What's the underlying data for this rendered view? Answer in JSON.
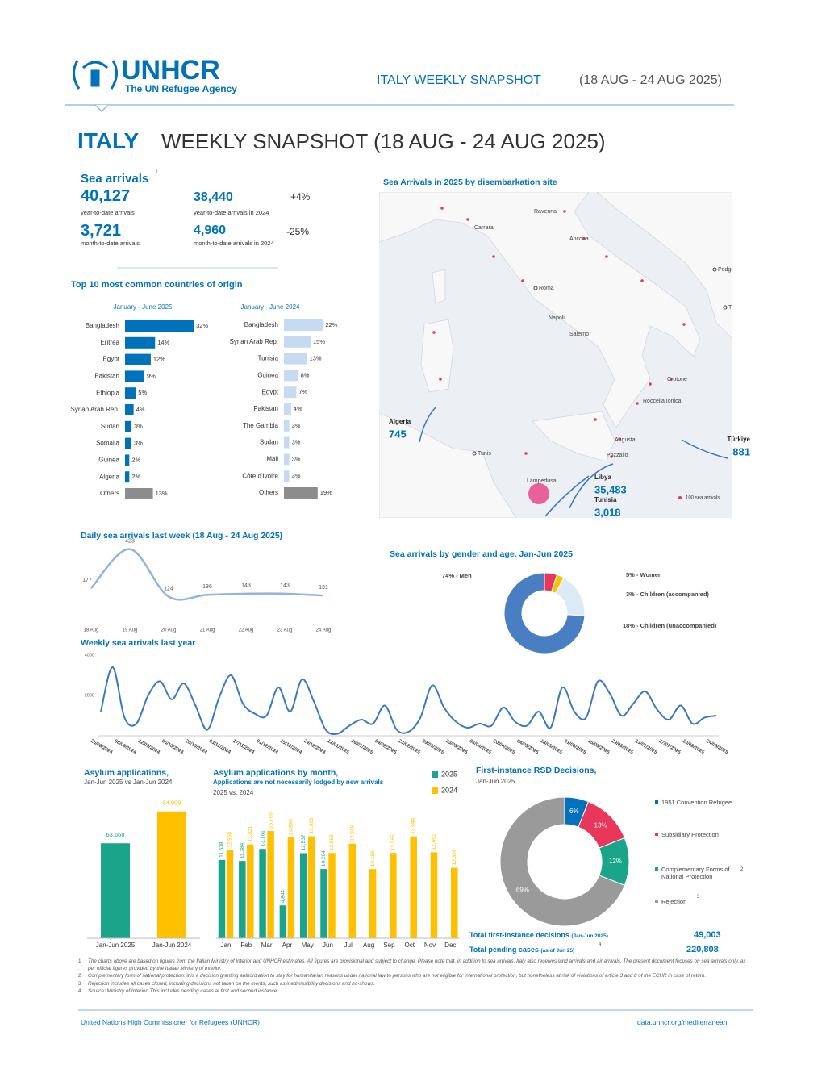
{
  "header": {
    "logo_name": "UNHCR",
    "logo_tagline": "The UN Refugee Agency",
    "top_title": "ITALY WEEKLY SNAPSHOT",
    "top_dates": "(18 AUG - 24 AUG 2025)",
    "title_country": "ITALY",
    "title_rest": "WEEKLY SNAPSHOT (18 AUG - 24 AUG 2025)"
  },
  "sea_arrivals": {
    "heading": "Sea arrivals",
    "note": "1",
    "items": [
      {
        "value": "40,127",
        "label": "year-to-date arrivals"
      },
      {
        "value": "38,440",
        "label": "year-to-date arrivals in 2024",
        "change": "+4%"
      },
      {
        "value": "3,721",
        "label": "month-to-date arrivals"
      },
      {
        "value": "4,960",
        "label": "month-to-date arrivals in 2024",
        "change": "-25%"
      }
    ]
  },
  "origin_heading": "Top 10 most common countries of origin",
  "map": {
    "title": "Sea Arrivals in 2025 by disembarkation site",
    "places": [
      "Ravenna",
      "Ancona",
      "Carrara",
      "Roma",
      "Napoli",
      "Salerno",
      "Crotone",
      "Roccella Ionica",
      "Augusta",
      "Pozzallo",
      "Lampedusa",
      "Tunis",
      "Podgorica",
      "Tirana"
    ],
    "flows": [
      {
        "origin": "Algeria",
        "value": "745"
      },
      {
        "origin": "Türkiye",
        "value": "881"
      },
      {
        "origin": "Libya",
        "value": "35,483"
      },
      {
        "origin": "Tunisia",
        "value": "3,018"
      }
    ],
    "legend": "100 sea arrivals"
  },
  "chart_data": [
    {
      "type": "bar",
      "horizontal": true,
      "title": "January - June 2025",
      "categories": [
        "Bangladesh",
        "Eritrea",
        "Egypt",
        "Pakistan",
        "Ethiopia",
        "Syrian Arab Rep.",
        "Sudan",
        "Somalia",
        "Guinea",
        "Algeria",
        "Others"
      ],
      "values": [
        32,
        14,
        12,
        9,
        5,
        4,
        3,
        3,
        2,
        2,
        13
      ],
      "value_labels": [
        "32%",
        "14%",
        "12%",
        "9%",
        "5%",
        "4%",
        "3%",
        "3%",
        "2%",
        "2%",
        "13%"
      ],
      "colors": [
        "#0072bc",
        "#0072bc",
        "#0072bc",
        "#0072bc",
        "#0072bc",
        "#0072bc",
        "#0072bc",
        "#0072bc",
        "#0072bc",
        "#0072bc",
        "#8c8c8c"
      ]
    },
    {
      "type": "bar",
      "horizontal": true,
      "title": "January - June 2024",
      "categories": [
        "Bangladesh",
        "Syrian Arab Rep.",
        "Tunisia",
        "Guinea",
        "Egypt",
        "Pakistan",
        "The Gambia",
        "Sudan",
        "Mali",
        "Côte d'Ivoire",
        "Others"
      ],
      "values": [
        22,
        15,
        13,
        8,
        7,
        4,
        3,
        3,
        3,
        3,
        19
      ],
      "value_labels": [
        "22%",
        "15%",
        "13%",
        "8%",
        "7%",
        "4%",
        "3%",
        "3%",
        "3%",
        "3%",
        "19%"
      ],
      "colors": [
        "#c6dbf2",
        "#c6dbf2",
        "#c6dbf2",
        "#c6dbf2",
        "#c6dbf2",
        "#c6dbf2",
        "#c6dbf2",
        "#c6dbf2",
        "#c6dbf2",
        "#c6dbf2",
        "#8c8c8c"
      ]
    },
    {
      "type": "line",
      "title": "Daily sea arrivals last week (18 Aug - 24 Aug 2025)",
      "categories": [
        "18 Aug",
        "19 Aug",
        "20 Aug",
        "21 Aug",
        "22 Aug",
        "23 Aug",
        "24 Aug"
      ],
      "values": [
        177,
        423,
        124,
        136,
        143,
        143,
        131
      ],
      "color": "#8fb4e3",
      "data_labels": true
    },
    {
      "type": "donut",
      "title": "Sea arrivals by gender and age, Jan-Jun 2025",
      "categories": [
        "74% - Men",
        "5% - Women",
        "3% - Children (accompanied)",
        "18% - Children (unaccompanied)"
      ],
      "values": [
        74,
        5,
        3,
        18
      ],
      "colors": [
        "#4a7ec2",
        "#e8375a",
        "#f5c400",
        "#dce9f7"
      ]
    },
    {
      "type": "line",
      "title": "Weekly sea arrivals last year",
      "categories": [
        "25/08/2024",
        null,
        "08/09/2024",
        null,
        "22/09/2024",
        null,
        "06/10/2024",
        null,
        "20/10/2024",
        null,
        "03/11/2024",
        null,
        "17/11/2024",
        null,
        "01/12/2024",
        null,
        "15/12/2024",
        null,
        "29/12/2024",
        null,
        "12/01/2025",
        null,
        "26/01/2025",
        null,
        "09/02/2025",
        null,
        "23/02/2025",
        null,
        "09/03/2025",
        null,
        "23/03/2025",
        null,
        "06/04/2025",
        null,
        "20/04/2025",
        null,
        "04/05/2025",
        null,
        "18/05/2025",
        null,
        "01/06/2025",
        null,
        "15/06/2025",
        null,
        "29/06/2025",
        null,
        "13/07/2025",
        null,
        "27/07/2025",
        null,
        "10/08/2025",
        null,
        "24/08/2025"
      ],
      "values": [
        1200,
        3400,
        900,
        600,
        2000,
        2700,
        1800,
        2600,
        1500,
        300,
        1900,
        3000,
        1600,
        1100,
        1000,
        2400,
        1200,
        2800,
        1700,
        300,
        100,
        500,
        800,
        600,
        1500,
        300,
        200,
        900,
        2500,
        1400,
        700,
        400,
        600,
        500,
        1400,
        700,
        500,
        1200,
        400,
        2400,
        1200,
        900,
        2700,
        2100,
        1000,
        1600,
        2200,
        1300,
        800,
        1500,
        600,
        900,
        1000
      ],
      "color": "#3a78c2",
      "ylim": [
        0,
        4000
      ],
      "yticks": [
        2000,
        4000
      ]
    },
    {
      "type": "bar",
      "title": "Asylum applications,",
      "subtitle": "Jan-Jun 2025 vs Jan-Jun 2024",
      "categories": [
        "Jan-Jun 2025",
        "Jan-Jun 2024"
      ],
      "values": [
        63668,
        84999
      ],
      "value_labels": [
        "63,668",
        "84,999"
      ],
      "colors": [
        "#1aa58a",
        "#ffc000"
      ]
    },
    {
      "type": "bar",
      "title": "Asylum applications by month,",
      "subtitle": [
        "Applications are not necessarily lodged by new arrivals",
        "2025 vs. 2024"
      ],
      "categories": [
        "Jan",
        "Feb",
        "Mar",
        "Apr",
        "May",
        "Jun",
        "Jul",
        "Aug",
        "Sep",
        "Oct",
        "Nov",
        "Dec"
      ],
      "series": [
        {
          "name": "2025",
          "color": "#1aa58a",
          "values": [
            11538,
            11384,
            13161,
            4844,
            12537,
            10204,
            null,
            null,
            null,
            null,
            null,
            null
          ],
          "value_labels": [
            "11,538",
            "11,384",
            "13,161",
            "4,844",
            "12,537",
            "10,204",
            null,
            null,
            null,
            null,
            null,
            null
          ]
        },
        {
          "name": "2024",
          "color": "#ffc000",
          "values": [
            12958,
            13821,
            15798,
            14836,
            15023,
            12563,
            13919,
            10188,
            12565,
            14998,
            12661,
            10396
          ],
          "value_labels": [
            "12,958",
            "13,821",
            "15,798",
            "14,836",
            "15,023",
            "12,563",
            "13,919",
            "10,188",
            "12,565",
            "14,998",
            "12,661",
            "10,396"
          ]
        }
      ]
    },
    {
      "type": "donut",
      "title": "First-instance RSD Decisions,",
      "subtitle": "Jan-Jun 2025",
      "categories": [
        "1951 Convention Refugee",
        "Subsidiary Protection",
        "Complementary Forms of National Protection",
        "Rejection"
      ],
      "values": [
        6,
        13,
        12,
        69
      ],
      "value_labels": [
        "6%",
        "13%",
        "12%",
        "69%"
      ],
      "notes": [
        null,
        null,
        "2",
        "3"
      ],
      "colors": [
        "#0072bc",
        "#e8375a",
        "#1aa58a",
        "#9a9a9a"
      ]
    }
  ],
  "rsd_totals": [
    {
      "label": "Total first-instance decisions",
      "qualifier": "(Jan-Jun 2025)",
      "value": "49,003"
    },
    {
      "label": "Total pending cases",
      "qualifier": "(as of Jun 25)",
      "note": "4",
      "value": "220,808"
    }
  ],
  "footnotes": [
    {
      "mark": "1",
      "text": "The charts above are based on figures from the Italian Ministry of Interior and UNHCR estimates. All figures are provisional and subject to change. Please note that, in addition to sea arrivals, Italy also receives land arrivals and air arrivals. The present document focuses on sea arrivals only, as per official figures provided by the Italian Ministry of Interior."
    },
    {
      "mark": "2",
      "text": "Complementary form of national protection: it is a decision granting authorization to stay for humanitarian reasons under national law to persons who are not eligible for international protection, but nonetheless at risk of violations of article 3 and 8 of the ECHR in case of return."
    },
    {
      "mark": "3",
      "text": "Rejection includes all cases closed, including decisions not taken on the merits, such as inadmissibility decisions and no-shows."
    },
    {
      "mark": "4",
      "text": "Source: Ministry of Interior. This includes pending cases at first and second instance."
    }
  ],
  "footer": {
    "left": "United Nations High Commissioner for Refugees (UNHCR)",
    "right": "data.unhcr.org/mediterranean"
  }
}
